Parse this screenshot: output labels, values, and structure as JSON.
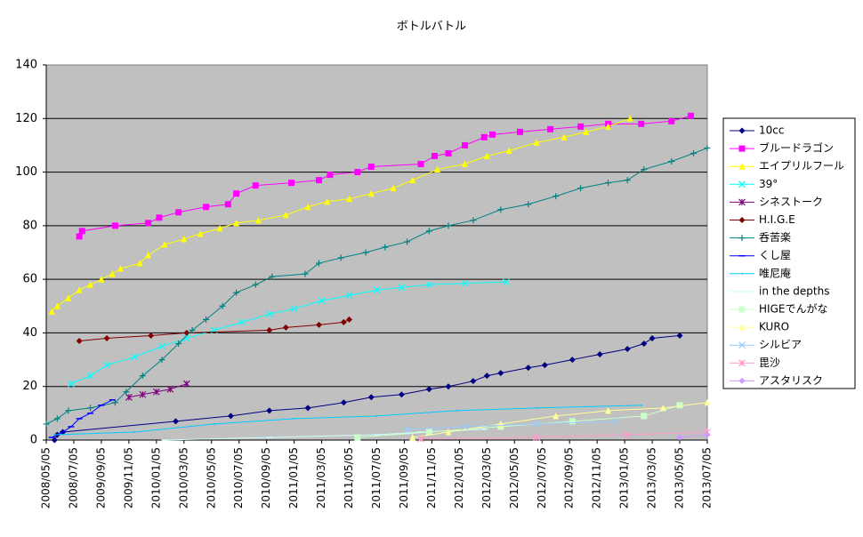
{
  "chart_data": {
    "type": "line",
    "title": "ボトルバトル",
    "ylim": [
      0,
      140
    ],
    "yticks": [
      0,
      20,
      40,
      60,
      80,
      100,
      120,
      140
    ],
    "grid": true,
    "xlim": [
      0,
      24
    ],
    "xticks": [
      {
        "value": 0,
        "label": "2008/05/05"
      },
      {
        "value": 1,
        "label": "2008/07/05"
      },
      {
        "value": 2,
        "label": "2009/09/05"
      },
      {
        "value": 3,
        "label": "2009/11/05"
      },
      {
        "value": 4,
        "label": "2010/01/05"
      },
      {
        "value": 5,
        "label": "2010/03/05"
      },
      {
        "value": 6,
        "label": "2010/05/05"
      },
      {
        "value": 7,
        "label": "2010/07/05"
      },
      {
        "value": 8,
        "label": "2010/09/05"
      },
      {
        "value": 9,
        "label": "2011/01/05"
      },
      {
        "value": 10,
        "label": "2011/03/05"
      },
      {
        "value": 11,
        "label": "2011/05/05"
      },
      {
        "value": 12,
        "label": "2011/07/05"
      },
      {
        "value": 13,
        "label": "2011/09/05"
      },
      {
        "value": 14,
        "label": "2011/11/05"
      },
      {
        "value": 15,
        "label": "2012/01/05"
      },
      {
        "value": 16,
        "label": "2012/03/05"
      },
      {
        "value": 17,
        "label": "2012/05/05"
      },
      {
        "value": 18,
        "label": "2012/07/05"
      },
      {
        "value": 19,
        "label": "2012/09/05"
      },
      {
        "value": 20,
        "label": "2012/11/05"
      },
      {
        "value": 21,
        "label": "2013/01/05"
      },
      {
        "value": 22,
        "label": "2013/03/05"
      },
      {
        "value": 23,
        "label": "2013/05/05"
      },
      {
        "value": 24,
        "label": "2013/07/05"
      }
    ],
    "legend": "right",
    "series": [
      {
        "name": "10cc",
        "color": "#000080",
        "marker": "diamond",
        "x": [
          0.3,
          0.4,
          0.6,
          4.7,
          6.7,
          8.1,
          9.5,
          10.8,
          11.8,
          12.9,
          13.9,
          14.6,
          15.5,
          16.0,
          16.5,
          17.5,
          18.1,
          19.1,
          20.1,
          21.1,
          21.7,
          22.0,
          23.0
        ],
        "values": [
          0,
          2,
          3,
          7,
          9,
          11,
          12,
          14,
          16,
          17,
          19,
          20,
          22,
          24,
          25,
          27,
          28,
          30,
          32,
          34,
          36,
          38,
          39
        ]
      },
      {
        "name": "ブルードラゴン",
        "color": "#ff00ff",
        "marker": "square",
        "x": [
          1.2,
          1.3,
          2.5,
          3.7,
          4.1,
          4.8,
          5.8,
          6.6,
          6.9,
          7.6,
          8.9,
          9.9,
          10.3,
          11.3,
          11.8,
          13.6,
          14.1,
          14.6,
          15.2,
          15.9,
          16.2,
          17.2,
          18.3,
          19.4,
          20.4,
          21.6,
          22.7,
          23.4
        ],
        "values": [
          76,
          78,
          80,
          81,
          83,
          85,
          87,
          88,
          92,
          95,
          96,
          97,
          99,
          100,
          102,
          103,
          106,
          107,
          110,
          113,
          114,
          115,
          116,
          117,
          118,
          118,
          119,
          121
        ]
      },
      {
        "name": "エイプリルフール",
        "color": "#ffff00",
        "marker": "triangle",
        "x": [
          0.2,
          0.4,
          0.8,
          1.2,
          1.6,
          2.0,
          2.4,
          2.7,
          3.4,
          3.7,
          4.3,
          5.0,
          5.6,
          6.3,
          6.9,
          7.7,
          8.7,
          9.5,
          10.2,
          11.0,
          11.8,
          12.6,
          13.3,
          14.2,
          15.2,
          16.0,
          16.8,
          17.8,
          18.8,
          19.6,
          20.4,
          21.2
        ],
        "values": [
          48,
          50,
          53,
          56,
          58,
          60,
          62,
          64,
          66,
          69,
          73,
          75,
          77,
          79,
          81,
          82,
          84,
          87,
          89,
          90,
          92,
          94,
          97,
          101,
          103,
          106,
          108,
          111,
          113,
          115,
          117,
          120
        ]
      },
      {
        "name": "39°",
        "color": "#00ffff",
        "marker": "x",
        "x": [
          0.9,
          1.6,
          2.2,
          3.2,
          4.2,
          5.1,
          6.1,
          7.1,
          8.1,
          9.0,
          10.0,
          11.0,
          12.0,
          12.9,
          13.9,
          15.2,
          16.7
        ],
        "values": [
          21,
          24,
          28,
          31,
          35,
          38,
          41,
          44,
          47,
          49,
          52,
          54,
          56,
          57,
          58,
          58.5,
          59
        ]
      },
      {
        "name": "シネストーク",
        "color": "#800080",
        "marker": "star",
        "x": [
          3.0,
          3.5,
          4.0,
          4.5,
          5.1
        ],
        "values": [
          16,
          17,
          18,
          19,
          21
        ]
      },
      {
        "name": "H.I.G.E",
        "color": "#800000",
        "marker": "diamond",
        "x": [
          1.2,
          2.2,
          3.8,
          5.1,
          8.1,
          8.7,
          9.9,
          10.8,
          11.0
        ],
        "values": [
          37,
          38,
          39,
          40,
          41,
          42,
          43,
          44,
          45
        ]
      },
      {
        "name": "呑苦楽",
        "color": "#008080",
        "marker": "plus",
        "x": [
          0,
          0.4,
          0.8,
          1.6,
          2.5,
          2.9,
          3.5,
          4.2,
          4.8,
          5.3,
          5.8,
          6.4,
          6.9,
          7.6,
          8.2,
          9.4,
          9.9,
          10.7,
          11.6,
          12.3,
          13.1,
          13.9,
          14.6,
          15.5,
          16.5,
          17.5,
          18.5,
          19.4,
          20.4,
          21.1,
          21.7,
          22.7,
          23.5,
          24.0
        ],
        "values": [
          6,
          8,
          11,
          12,
          14,
          18,
          24,
          30,
          36,
          41,
          45,
          50,
          55,
          58,
          61,
          62,
          66,
          68,
          70,
          72,
          74,
          78,
          80,
          82,
          86,
          88,
          91,
          94,
          96,
          97,
          101,
          104,
          107,
          109
        ]
      },
      {
        "name": "くし屋",
        "color": "#0000ff",
        "marker": "dash",
        "x": [
          0.2,
          0.6,
          0.9,
          1.2,
          1.6,
          2.0,
          2.4
        ],
        "values": [
          1,
          3,
          5,
          8,
          10,
          13,
          15
        ]
      },
      {
        "name": "唯尼庵",
        "color": "#00ccff",
        "marker": "none",
        "x": [
          0.3,
          3.2,
          6.1,
          9.0,
          12.0,
          14.9,
          17.8,
          21.6
        ],
        "values": [
          2,
          3,
          6,
          8,
          9,
          11,
          12,
          13
        ]
      },
      {
        "name": "in the depths",
        "color": "#ccffff",
        "marker": "dash",
        "x": [
          4.3,
          8.1,
          12.0,
          13.6,
          15.9
        ],
        "values": [
          0,
          1,
          2,
          3,
          4
        ]
      },
      {
        "name": "HIGEでんがな",
        "color": "#ccffcc",
        "marker": "square",
        "x": [
          11.3,
          13.9,
          16.5,
          19.1,
          21.7,
          23.0
        ],
        "values": [
          1,
          3,
          5,
          7,
          9,
          13
        ]
      },
      {
        "name": "KURO",
        "color": "#ffff99",
        "marker": "triangle",
        "x": [
          13.3,
          14.6,
          16.5,
          18.5,
          20.4,
          22.4,
          24.0
        ],
        "values": [
          1,
          3,
          6,
          9,
          11,
          12,
          14
        ]
      },
      {
        "name": "シルビア",
        "color": "#99ccff",
        "marker": "x",
        "x": [
          13.1,
          15.2,
          17.8,
          20.7
        ],
        "values": [
          4,
          5,
          6,
          7
        ]
      },
      {
        "name": "毘沙",
        "color": "#ff99cc",
        "marker": "star",
        "x": [
          13.6,
          17.8,
          21.1,
          24.0
        ],
        "values": [
          0.5,
          1,
          2,
          3
        ]
      },
      {
        "name": "アスタリスク",
        "color": "#cc99ff",
        "marker": "diamond",
        "x": [
          23.0,
          24.0
        ],
        "values": [
          1,
          2
        ]
      }
    ]
  }
}
